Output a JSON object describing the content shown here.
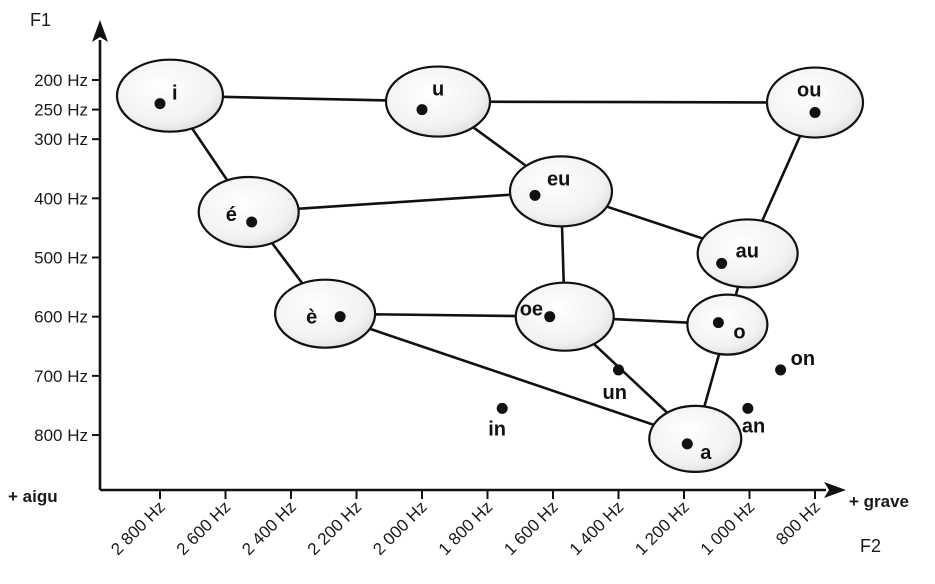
{
  "chart_data": {
    "type": "scatter",
    "x_axis": {
      "end_label": "+ grave",
      "title": "F2",
      "reversed": true,
      "range": [
        3000,
        630
      ],
      "ticks": [
        {
          "value": 2800,
          "label": "2 800 Hz"
        },
        {
          "value": 2600,
          "label": "2 600 Hz"
        },
        {
          "value": 2400,
          "label": "2 400 Hz"
        },
        {
          "value": 2200,
          "label": "2 200 Hz"
        },
        {
          "value": 2000,
          "label": "2 000 Hz"
        },
        {
          "value": 1800,
          "label": "1 800 Hz"
        },
        {
          "value": 1600,
          "label": "1 600 Hz"
        },
        {
          "value": 1400,
          "label": "1 400 Hz"
        },
        {
          "value": 1200,
          "label": "1 200 Hz"
        },
        {
          "value": 1000,
          "label": "1 000 Hz"
        },
        {
          "value": 800,
          "label": "800 Hz"
        }
      ]
    },
    "y_axis": {
      "title": "F1",
      "origin_label": "+ aigu",
      "reversed": true,
      "range": [
        0,
        920
      ],
      "ticks": [
        {
          "value": 200,
          "label": "200 Hz"
        },
        {
          "value": 250,
          "label": "250 Hz"
        },
        {
          "value": 300,
          "label": "300 Hz"
        },
        {
          "value": 400,
          "label": "400 Hz"
        },
        {
          "value": 500,
          "label": "500 Hz"
        },
        {
          "value": 600,
          "label": "600 Hz"
        },
        {
          "value": 700,
          "label": "700 Hz"
        },
        {
          "value": 800,
          "label": "800 Hz"
        }
      ]
    },
    "points": [
      {
        "id": "i",
        "label": "i",
        "f2": 2800,
        "f1": 240,
        "circled": true
      },
      {
        "id": "u",
        "label": "u",
        "f2": 2000,
        "f1": 250,
        "circled": true
      },
      {
        "id": "ou",
        "label": "ou",
        "f2": 800,
        "f1": 255,
        "circled": true
      },
      {
        "id": "e-aigu",
        "label": "é",
        "f2": 2520,
        "f1": 440,
        "circled": true
      },
      {
        "id": "eu",
        "label": "eu",
        "f2": 1655,
        "f1": 395,
        "circled": true
      },
      {
        "id": "au",
        "label": "au",
        "f2": 1085,
        "f1": 510,
        "circled": true
      },
      {
        "id": "e-grave",
        "label": "è",
        "f2": 2250,
        "f1": 600,
        "circled": true
      },
      {
        "id": "oe",
        "label": "oe",
        "f2": 1610,
        "f1": 600,
        "circled": true
      },
      {
        "id": "o",
        "label": "o",
        "f2": 1095,
        "f1": 610,
        "circled": true
      },
      {
        "id": "a",
        "label": "a",
        "f2": 1190,
        "f1": 815,
        "circled": true
      },
      {
        "id": "in",
        "label": "in",
        "f2": 1755,
        "f1": 755,
        "circled": false
      },
      {
        "id": "un",
        "label": "un",
        "f2": 1400,
        "f1": 690,
        "circled": false
      },
      {
        "id": "an",
        "label": "an",
        "f2": 1005,
        "f1": 755,
        "circled": false
      },
      {
        "id": "on",
        "label": "on",
        "f2": 905,
        "f1": 690,
        "circled": false
      }
    ],
    "links": [
      [
        "i",
        "u"
      ],
      [
        "u",
        "ou"
      ],
      [
        "i",
        "e-aigu"
      ],
      [
        "u",
        "eu"
      ],
      [
        "e-aigu",
        "eu"
      ],
      [
        "eu",
        "au"
      ],
      [
        "ou",
        "au"
      ],
      [
        "e-aigu",
        "e-grave"
      ],
      [
        "eu",
        "oe"
      ],
      [
        "au",
        "o"
      ],
      [
        "e-grave",
        "oe"
      ],
      [
        "oe",
        "o"
      ],
      [
        "e-grave",
        "a"
      ],
      [
        "oe",
        "a"
      ],
      [
        "o",
        "a"
      ]
    ]
  }
}
